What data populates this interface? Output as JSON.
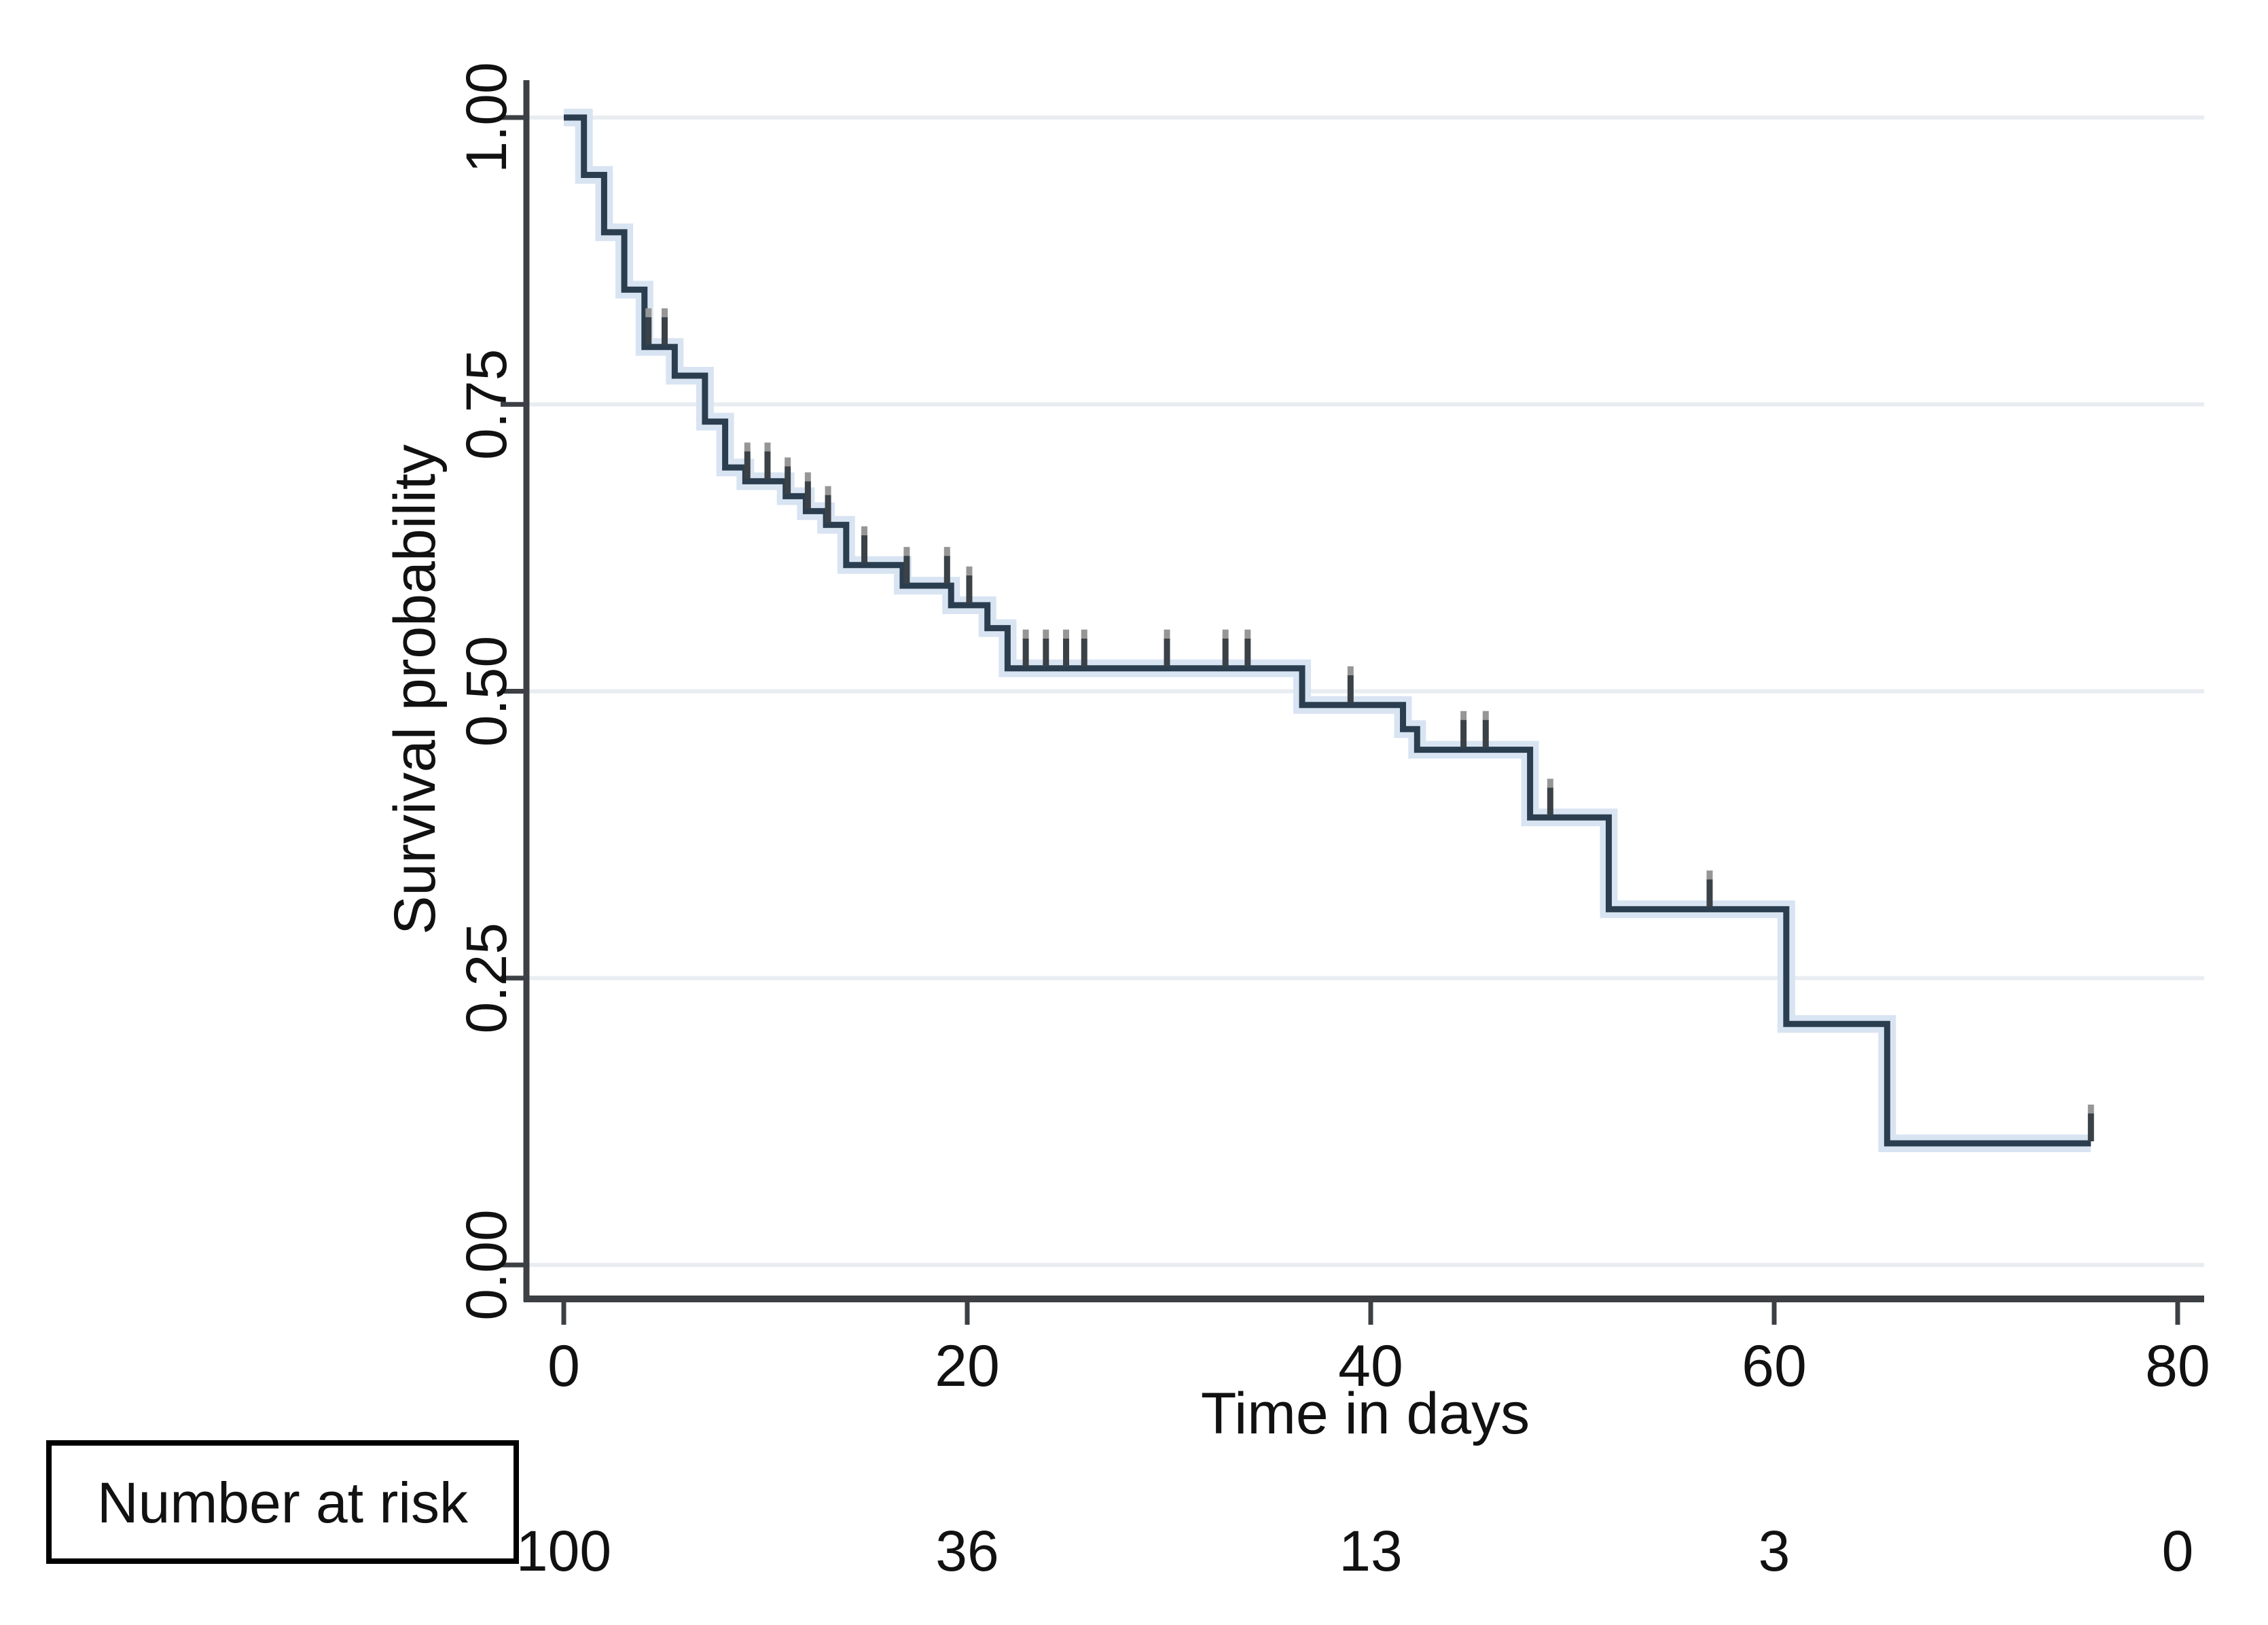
{
  "figure": {
    "background": "#ffffff",
    "y_axis": {
      "title": "Survival probability",
      "tick_labels": [
        "1.00",
        "0.75",
        "0.50",
        "0.25",
        "0.00"
      ],
      "tick_values": [
        1.0,
        0.75,
        0.5,
        0.25,
        0.0
      ]
    },
    "x_axis": {
      "title": "Time in days",
      "tick_labels": [
        "0",
        "20",
        "40",
        "60",
        "80"
      ],
      "tick_values": [
        0,
        20,
        40,
        60,
        80
      ]
    },
    "risk_table": {
      "header": "Number at risk",
      "values": [
        "100",
        "36",
        "13",
        "3",
        "0"
      ]
    },
    "colors": {
      "curve": "#2b3e50",
      "curve_halo": "#d8e4f2",
      "grid": "#e9edf2",
      "axis": "#3c4044",
      "text": "#111111",
      "censor": "#3a4147",
      "censor_cap": "#969696",
      "risk_box_border": "#000000"
    }
  },
  "chart_data": {
    "type": "line",
    "subtype": "kaplan-meier-step",
    "title": "",
    "xlabel": "Time in days",
    "ylabel": "Survival probability",
    "xlim": [
      0,
      80
    ],
    "ylim": [
      0.0,
      1.0
    ],
    "grid": "horizontal-only",
    "legend": "none",
    "steps": [
      [
        0,
        1.0
      ],
      [
        1,
        0.95
      ],
      [
        2,
        0.9
      ],
      [
        3,
        0.85
      ],
      [
        4,
        0.8
      ],
      [
        5.5,
        0.775
      ],
      [
        7,
        0.735
      ],
      [
        8,
        0.695
      ],
      [
        9,
        0.683
      ],
      [
        11,
        0.67
      ],
      [
        12,
        0.657
      ],
      [
        13,
        0.645
      ],
      [
        14,
        0.61
      ],
      [
        16.8,
        0.592
      ],
      [
        19.2,
        0.575
      ],
      [
        21,
        0.555
      ],
      [
        22,
        0.52
      ],
      [
        36.6,
        0.488
      ],
      [
        41.6,
        0.467
      ],
      [
        42.3,
        0.449
      ],
      [
        47.9,
        0.39
      ],
      [
        51.8,
        0.31
      ],
      [
        60.6,
        0.21
      ],
      [
        65.6,
        0.106
      ]
    ],
    "end_time": 75.7,
    "censor_marks": [
      [
        4.2,
        0.8
      ],
      [
        5.0,
        0.8
      ],
      [
        9.1,
        0.683
      ],
      [
        10.1,
        0.683
      ],
      [
        11.1,
        0.67
      ],
      [
        12.1,
        0.657
      ],
      [
        13.1,
        0.645
      ],
      [
        14.9,
        0.61
      ],
      [
        17.0,
        0.592
      ],
      [
        19.0,
        0.592
      ],
      [
        20.1,
        0.575
      ],
      [
        22.9,
        0.52
      ],
      [
        23.9,
        0.52
      ],
      [
        24.9,
        0.52
      ],
      [
        25.8,
        0.52
      ],
      [
        29.9,
        0.52
      ],
      [
        32.8,
        0.52
      ],
      [
        33.9,
        0.52
      ],
      [
        39.0,
        0.488
      ],
      [
        44.6,
        0.449
      ],
      [
        45.7,
        0.449
      ],
      [
        48.9,
        0.39
      ],
      [
        56.8,
        0.31
      ],
      [
        75.7,
        0.106
      ]
    ],
    "number_at_risk": {
      "times": [
        0,
        20,
        40,
        60,
        80
      ],
      "counts": [
        100,
        36,
        13,
        3,
        0
      ]
    }
  }
}
